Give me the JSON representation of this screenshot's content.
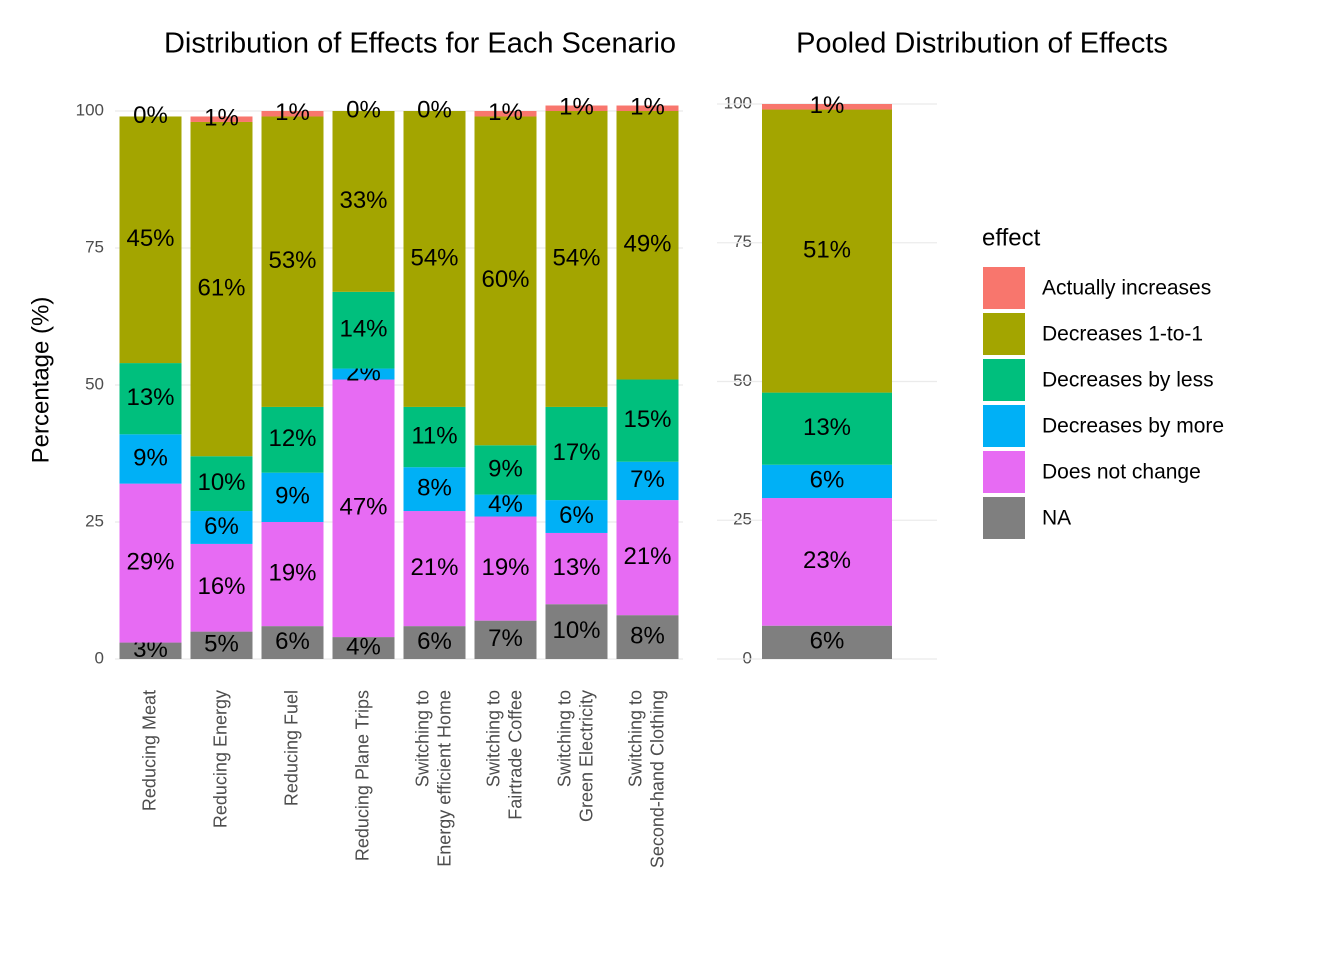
{
  "chart_data": [
    {
      "type": "stacked_bar",
      "title": "Distribution of Effects for Each Scenario",
      "y_label": "Percentage (%)",
      "categories": [
        "Reducing Meat",
        "Reducing Energy",
        "Reducing Fuel",
        "Reducing Plane Trips",
        "Switching to\nEnergy efficient Home",
        "Switching to\nFairtrade Coffee",
        "Switching to\nGreen Electricity",
        "Switching to\nSecond-hand Clothing"
      ],
      "series": [
        {
          "name": "Actually increases",
          "color": "#F8766D",
          "values": [
            0,
            1,
            1,
            0,
            0,
            1,
            1,
            1
          ],
          "value_labels": [
            "0%",
            "1%",
            "1%",
            "0%",
            "0%",
            "1%",
            "1%",
            "1%"
          ]
        },
        {
          "name": "Decreases 1-to-1",
          "color": "#A3A500",
          "values": [
            45,
            61,
            53,
            33,
            54,
            60,
            54,
            49
          ],
          "value_labels": [
            "45%",
            "61%",
            "53%",
            "33%",
            "54%",
            "60%",
            "54%",
            "49%"
          ]
        },
        {
          "name": "Decreases by less",
          "color": "#00BF7D",
          "values": [
            13,
            10,
            12,
            14,
            11,
            9,
            17,
            15
          ],
          "value_labels": [
            "13%",
            "10%",
            "12%",
            "14%",
            "11%",
            "9%",
            "17%",
            "15%"
          ]
        },
        {
          "name": "Decreases by more",
          "color": "#00B0F6",
          "values": [
            9,
            6,
            9,
            2,
            8,
            4,
            6,
            7
          ],
          "value_labels": [
            "9%",
            "6%",
            "9%",
            "2%",
            "8%",
            "4%",
            "6%",
            "7%"
          ]
        },
        {
          "name": "Does not change",
          "color": "#E76BF3",
          "values": [
            29,
            16,
            19,
            47,
            21,
            19,
            13,
            21
          ],
          "value_labels": [
            "29%",
            "16%",
            "19%",
            "47%",
            "21%",
            "19%",
            "13%",
            "21%"
          ]
        },
        {
          "name": "NA",
          "color": "#7F7F7F",
          "values": [
            3,
            5,
            6,
            4,
            6,
            7,
            10,
            8
          ],
          "value_labels": [
            "3%",
            "5%",
            "6%",
            "4%",
            "6%",
            "7%",
            "10%",
            "8%"
          ]
        }
      ],
      "ylim": [
        0,
        103
      ],
      "yticks": [
        0,
        25,
        50,
        75,
        100
      ],
      "grid": true
    },
    {
      "type": "stacked_bar",
      "title": "Pooled Distribution of Effects",
      "categories": [
        null
      ],
      "series": [
        {
          "name": "Actually increases",
          "color": "#F8766D",
          "values": [
            1
          ],
          "value_labels": [
            "1%"
          ]
        },
        {
          "name": "Decreases 1-to-1",
          "color": "#A3A500",
          "values": [
            51
          ],
          "value_labels": [
            "51%"
          ]
        },
        {
          "name": "Decreases by less",
          "color": "#00BF7D",
          "values": [
            13
          ],
          "value_labels": [
            "13%"
          ]
        },
        {
          "name": "Decreases by more",
          "color": "#00B0F6",
          "values": [
            6
          ],
          "value_labels": [
            "6%"
          ]
        },
        {
          "name": "Does not change",
          "color": "#E76BF3",
          "values": [
            23
          ],
          "value_labels": [
            "23%"
          ]
        },
        {
          "name": "NA",
          "color": "#7F7F7F",
          "values": [
            6
          ],
          "value_labels": [
            "6%"
          ]
        }
      ],
      "ylim": [
        0,
        102
      ],
      "yticks": [
        0,
        25,
        50,
        75,
        100
      ],
      "grid": true,
      "legend": "right",
      "legend_title": "effect"
    }
  ]
}
